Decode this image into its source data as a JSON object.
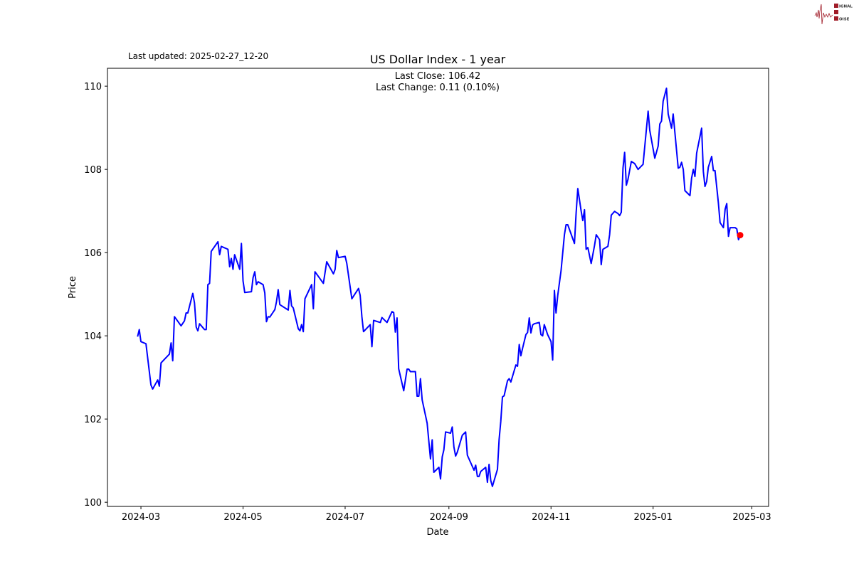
{
  "logo": {
    "text": "SIGNAL 2 NOISE",
    "colors": {
      "wave": "#a01c28",
      "box": "#a01c28"
    }
  },
  "last_updated": "Last updated: 2025-02-27_12-20",
  "chart_data": {
    "type": "line",
    "title": "US Dollar Index - 1 year",
    "annotation_lines": [
      "Last Close: 106.42",
      "Last Change: 0.11 (0.10%)"
    ],
    "xlabel": "Date",
    "ylabel": "Price",
    "xlim": [
      "2024-02-10",
      "2025-03-11"
    ],
    "ylim": [
      99.9,
      110.43
    ],
    "grid": false,
    "line_color": "#0000ff",
    "last_point_color": "#ff0000",
    "x_ticks": [
      {
        "date": "2024-03-01",
        "label": "2024-03"
      },
      {
        "date": "2024-05-01",
        "label": "2024-05"
      },
      {
        "date": "2024-07-01",
        "label": "2024-07"
      },
      {
        "date": "2024-09-01",
        "label": "2024-09"
      },
      {
        "date": "2024-11-01",
        "label": "2024-11"
      },
      {
        "date": "2025-01-01",
        "label": "2025-01"
      },
      {
        "date": "2025-03-01",
        "label": "2025-03"
      }
    ],
    "y_ticks": [
      {
        "value": 100,
        "label": "100"
      },
      {
        "value": 102,
        "label": "102"
      },
      {
        "value": 104,
        "label": "104"
      },
      {
        "value": 106,
        "label": "106"
      },
      {
        "value": 108,
        "label": "108"
      },
      {
        "value": 110,
        "label": "110"
      }
    ],
    "points": [
      [
        "2024-02-28",
        103.98
      ],
      [
        "2024-02-29",
        104.15
      ],
      [
        "2024-03-01",
        103.86
      ],
      [
        "2024-03-04",
        103.81
      ],
      [
        "2024-03-07",
        102.82
      ],
      [
        "2024-03-08",
        102.72
      ],
      [
        "2024-03-11",
        102.94
      ],
      [
        "2024-03-12",
        102.79
      ],
      [
        "2024-03-13",
        103.35
      ],
      [
        "2024-03-18",
        103.56
      ],
      [
        "2024-03-19",
        103.83
      ],
      [
        "2024-03-20",
        103.4
      ],
      [
        "2024-03-21",
        104.46
      ],
      [
        "2024-03-25",
        104.24
      ],
      [
        "2024-03-27",
        104.36
      ],
      [
        "2024-03-28",
        104.55
      ],
      [
        "2024-03-29",
        104.55
      ],
      [
        "2024-04-01",
        105.02
      ],
      [
        "2024-04-02",
        104.79
      ],
      [
        "2024-04-03",
        104.21
      ],
      [
        "2024-04-04",
        104.12
      ],
      [
        "2024-04-05",
        104.29
      ],
      [
        "2024-04-08",
        104.15
      ],
      [
        "2024-04-09",
        104.15
      ],
      [
        "2024-04-10",
        105.23
      ],
      [
        "2024-04-11",
        105.26
      ],
      [
        "2024-04-12",
        106.03
      ],
      [
        "2024-04-16",
        106.26
      ],
      [
        "2024-04-17",
        105.95
      ],
      [
        "2024-04-18",
        106.15
      ],
      [
        "2024-04-22",
        106.08
      ],
      [
        "2024-04-23",
        105.66
      ],
      [
        "2024-04-24",
        105.86
      ],
      [
        "2024-04-25",
        105.6
      ],
      [
        "2024-04-26",
        105.95
      ],
      [
        "2024-04-29",
        105.6
      ],
      [
        "2024-04-30",
        106.22
      ],
      [
        "2024-05-01",
        105.32
      ],
      [
        "2024-05-02",
        105.04
      ],
      [
        "2024-05-06",
        105.06
      ],
      [
        "2024-05-07",
        105.4
      ],
      [
        "2024-05-08",
        105.54
      ],
      [
        "2024-05-09",
        105.23
      ],
      [
        "2024-05-10",
        105.3
      ],
      [
        "2024-05-13",
        105.23
      ],
      [
        "2024-05-14",
        105.03
      ],
      [
        "2024-05-15",
        104.34
      ],
      [
        "2024-05-16",
        104.46
      ],
      [
        "2024-05-17",
        104.45
      ],
      [
        "2024-05-20",
        104.63
      ],
      [
        "2024-05-21",
        104.82
      ],
      [
        "2024-05-22",
        105.11
      ],
      [
        "2024-05-23",
        104.75
      ],
      [
        "2024-05-28",
        104.62
      ],
      [
        "2024-05-29",
        105.09
      ],
      [
        "2024-05-30",
        104.72
      ],
      [
        "2024-05-31",
        104.67
      ],
      [
        "2024-06-03",
        104.17
      ],
      [
        "2024-06-04",
        104.12
      ],
      [
        "2024-06-05",
        104.27
      ],
      [
        "2024-06-06",
        104.1
      ],
      [
        "2024-06-07",
        104.89
      ],
      [
        "2024-06-11",
        105.23
      ],
      [
        "2024-06-12",
        104.65
      ],
      [
        "2024-06-13",
        105.54
      ],
      [
        "2024-06-18",
        105.26
      ],
      [
        "2024-06-20",
        105.78
      ],
      [
        "2024-06-24",
        105.49
      ],
      [
        "2024-06-25",
        105.6
      ],
      [
        "2024-06-26",
        106.05
      ],
      [
        "2024-06-27",
        105.88
      ],
      [
        "2024-07-01",
        105.91
      ],
      [
        "2024-07-02",
        105.74
      ],
      [
        "2024-07-05",
        104.89
      ],
      [
        "2024-07-09",
        105.14
      ],
      [
        "2024-07-10",
        104.97
      ],
      [
        "2024-07-11",
        104.46
      ],
      [
        "2024-07-12",
        104.1
      ],
      [
        "2024-07-16",
        104.27
      ],
      [
        "2024-07-17",
        103.74
      ],
      [
        "2024-07-18",
        104.37
      ],
      [
        "2024-07-22",
        104.32
      ],
      [
        "2024-07-23",
        104.44
      ],
      [
        "2024-07-26",
        104.32
      ],
      [
        "2024-07-29",
        104.58
      ],
      [
        "2024-07-30",
        104.56
      ],
      [
        "2024-07-31",
        104.09
      ],
      [
        "2024-08-01",
        104.43
      ],
      [
        "2024-08-02",
        103.21
      ],
      [
        "2024-08-05",
        102.68
      ],
      [
        "2024-08-07",
        103.2
      ],
      [
        "2024-08-08",
        103.2
      ],
      [
        "2024-08-09",
        103.14
      ],
      [
        "2024-08-12",
        103.14
      ],
      [
        "2024-08-13",
        102.55
      ],
      [
        "2024-08-14",
        102.55
      ],
      [
        "2024-08-15",
        102.97
      ],
      [
        "2024-08-16",
        102.46
      ],
      [
        "2024-08-19",
        101.9
      ],
      [
        "2024-08-21",
        101.04
      ],
      [
        "2024-08-22",
        101.5
      ],
      [
        "2024-08-23",
        100.72
      ],
      [
        "2024-08-26",
        100.84
      ],
      [
        "2024-08-27",
        100.56
      ],
      [
        "2024-08-28",
        101.09
      ],
      [
        "2024-08-29",
        101.26
      ],
      [
        "2024-08-30",
        101.69
      ],
      [
        "2024-09-02",
        101.66
      ],
      [
        "2024-09-03",
        101.81
      ],
      [
        "2024-09-04",
        101.33
      ],
      [
        "2024-09-05",
        101.11
      ],
      [
        "2024-09-06",
        101.2
      ],
      [
        "2024-09-09",
        101.61
      ],
      [
        "2024-09-11",
        101.69
      ],
      [
        "2024-09-12",
        101.13
      ],
      [
        "2024-09-16",
        100.77
      ],
      [
        "2024-09-17",
        100.89
      ],
      [
        "2024-09-18",
        100.62
      ],
      [
        "2024-09-19",
        100.62
      ],
      [
        "2024-09-20",
        100.74
      ],
      [
        "2024-09-23",
        100.84
      ],
      [
        "2024-09-24",
        100.48
      ],
      [
        "2024-09-25",
        100.91
      ],
      [
        "2024-09-26",
        100.52
      ],
      [
        "2024-09-27",
        100.38
      ],
      [
        "2024-09-30",
        100.79
      ],
      [
        "2024-10-01",
        101.5
      ],
      [
        "2024-10-02",
        101.95
      ],
      [
        "2024-10-03",
        102.53
      ],
      [
        "2024-10-04",
        102.56
      ],
      [
        "2024-10-06",
        102.92
      ],
      [
        "2024-10-07",
        102.97
      ],
      [
        "2024-10-08",
        102.89
      ],
      [
        "2024-10-11",
        103.3
      ],
      [
        "2024-10-12",
        103.27
      ],
      [
        "2024-10-13",
        103.79
      ],
      [
        "2024-10-14",
        103.52
      ],
      [
        "2024-10-15",
        103.7
      ],
      [
        "2024-10-17",
        104.03
      ],
      [
        "2024-10-18",
        104.08
      ],
      [
        "2024-10-19",
        104.43
      ],
      [
        "2024-10-20",
        104.07
      ],
      [
        "2024-10-21",
        104.26
      ],
      [
        "2024-10-22",
        104.29
      ],
      [
        "2024-10-25",
        104.32
      ],
      [
        "2024-10-26",
        104.03
      ],
      [
        "2024-10-27",
        104.0
      ],
      [
        "2024-10-28",
        104.27
      ],
      [
        "2024-10-30",
        104.03
      ],
      [
        "2024-11-01",
        103.86
      ],
      [
        "2024-11-02",
        103.42
      ],
      [
        "2024-11-03",
        105.09
      ],
      [
        "2024-11-04",
        104.55
      ],
      [
        "2024-11-05",
        104.97
      ],
      [
        "2024-11-07",
        105.57
      ],
      [
        "2024-11-09",
        106.43
      ],
      [
        "2024-11-10",
        106.67
      ],
      [
        "2024-11-11",
        106.67
      ],
      [
        "2024-11-15",
        106.22
      ],
      [
        "2024-11-16",
        106.94
      ],
      [
        "2024-11-17",
        107.54
      ],
      [
        "2024-11-19",
        107.0
      ],
      [
        "2024-11-20",
        106.77
      ],
      [
        "2024-11-21",
        107.03
      ],
      [
        "2024-11-22",
        106.08
      ],
      [
        "2024-11-23",
        106.12
      ],
      [
        "2024-11-25",
        105.74
      ],
      [
        "2024-11-27",
        106.17
      ],
      [
        "2024-11-28",
        106.43
      ],
      [
        "2024-11-30",
        106.31
      ],
      [
        "2024-12-01",
        105.71
      ],
      [
        "2024-12-02",
        106.08
      ],
      [
        "2024-12-05",
        106.15
      ],
      [
        "2024-12-06",
        106.43
      ],
      [
        "2024-12-07",
        106.9
      ],
      [
        "2024-12-09",
        106.99
      ],
      [
        "2024-12-11",
        106.94
      ],
      [
        "2024-12-12",
        106.89
      ],
      [
        "2024-12-13",
        106.97
      ],
      [
        "2024-12-14",
        108.03
      ],
      [
        "2024-12-15",
        108.41
      ],
      [
        "2024-12-16",
        107.62
      ],
      [
        "2024-12-17",
        107.76
      ],
      [
        "2024-12-19",
        108.19
      ],
      [
        "2024-12-21",
        108.14
      ],
      [
        "2024-12-23",
        108.0
      ],
      [
        "2024-12-26",
        108.12
      ],
      [
        "2024-12-29",
        109.4
      ],
      [
        "2024-12-30",
        108.94
      ],
      [
        "2025-01-02",
        108.27
      ],
      [
        "2025-01-04",
        108.56
      ],
      [
        "2025-01-05",
        109.09
      ],
      [
        "2025-01-06",
        109.16
      ],
      [
        "2025-01-07",
        109.64
      ],
      [
        "2025-01-09",
        109.95
      ],
      [
        "2025-01-10",
        109.33
      ],
      [
        "2025-01-12",
        108.99
      ],
      [
        "2025-01-13",
        109.33
      ],
      [
        "2025-01-16",
        108.03
      ],
      [
        "2025-01-17",
        108.05
      ],
      [
        "2025-01-18",
        108.17
      ],
      [
        "2025-01-19",
        108.0
      ],
      [
        "2025-01-20",
        107.49
      ],
      [
        "2025-01-23",
        107.37
      ],
      [
        "2025-01-24",
        107.79
      ],
      [
        "2025-01-25",
        108.0
      ],
      [
        "2025-01-26",
        107.83
      ],
      [
        "2025-01-27",
        108.39
      ],
      [
        "2025-01-30",
        108.99
      ],
      [
        "2025-01-31",
        107.95
      ],
      [
        "2025-02-01",
        107.59
      ],
      [
        "2025-02-02",
        107.71
      ],
      [
        "2025-02-03",
        108.05
      ],
      [
        "2025-02-05",
        108.31
      ],
      [
        "2025-02-06",
        107.97
      ],
      [
        "2025-02-07",
        107.97
      ],
      [
        "2025-02-09",
        107.2
      ],
      [
        "2025-02-10",
        106.72
      ],
      [
        "2025-02-12",
        106.6
      ],
      [
        "2025-02-13",
        107.04
      ],
      [
        "2025-02-14",
        107.18
      ],
      [
        "2025-02-15",
        106.39
      ],
      [
        "2025-02-16",
        106.6
      ],
      [
        "2025-02-19",
        106.6
      ],
      [
        "2025-02-20",
        106.57
      ],
      [
        "2025-02-21",
        106.31
      ],
      [
        "2025-02-22",
        106.42
      ]
    ]
  }
}
